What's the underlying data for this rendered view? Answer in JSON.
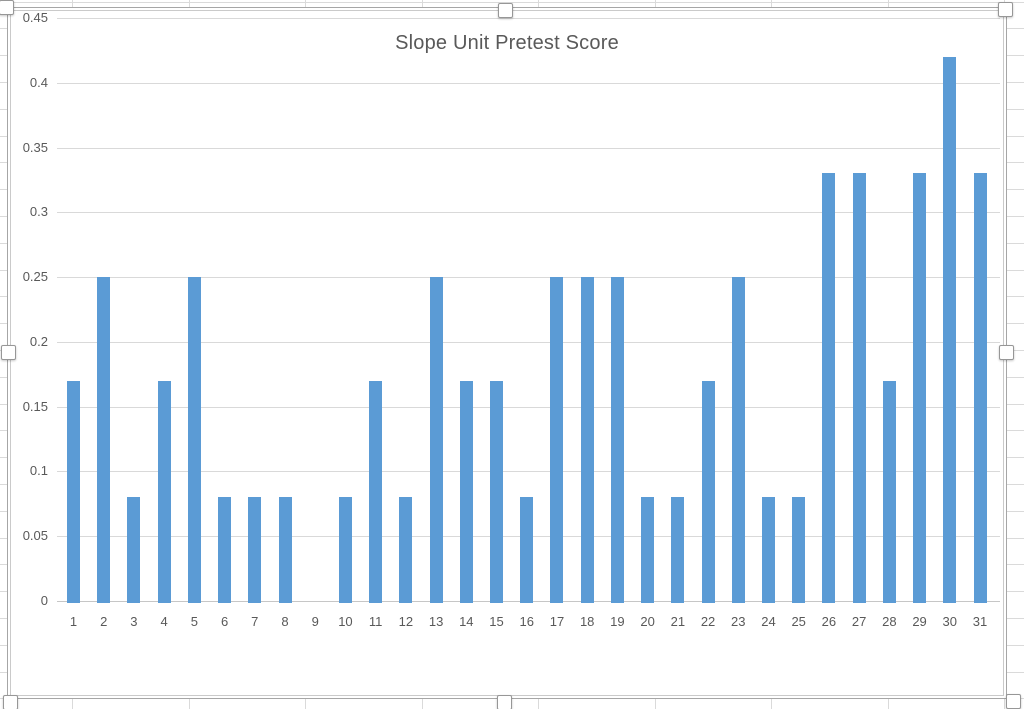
{
  "chart_data": {
    "type": "bar",
    "title": "Slope Unit Pretest Score",
    "categories": [
      "1",
      "2",
      "3",
      "4",
      "5",
      "6",
      "7",
      "8",
      "9",
      "10",
      "11",
      "12",
      "13",
      "14",
      "15",
      "16",
      "17",
      "18",
      "19",
      "20",
      "21",
      "22",
      "23",
      "24",
      "25",
      "26",
      "27",
      "28",
      "29",
      "30",
      "31"
    ],
    "values": [
      0.17,
      0.25,
      0.08,
      0.17,
      0.25,
      0.08,
      0.08,
      0.08,
      0,
      0.08,
      0.17,
      0.08,
      0.25,
      0.17,
      0.17,
      0.08,
      0.25,
      0.25,
      0.25,
      0.08,
      0.08,
      0.17,
      0.25,
      0.08,
      0.08,
      0.33,
      0.33,
      0.17,
      0.33,
      0.42,
      0.33
    ],
    "xlabel": "",
    "ylabel": "",
    "ylim": [
      0,
      0.45
    ],
    "yticks": [
      0,
      0.05,
      0.1,
      0.15,
      0.2,
      0.25,
      0.3,
      0.35,
      0.4,
      0.45
    ],
    "ytick_labels": [
      "0",
      "0.05",
      "0.1",
      "0.15",
      "0.2",
      "0.25",
      "0.3",
      "0.35",
      "0.4",
      "0.45"
    ],
    "grid": true,
    "legend": "none",
    "bar_color": "#5B9BD5"
  },
  "chart_state": {
    "selected": true,
    "handle_positions": [
      "top-left",
      "top-center",
      "top-right",
      "middle-left",
      "middle-right",
      "bottom-left",
      "bottom-center",
      "bottom-right"
    ]
  },
  "colors": {
    "bar": "#5B9BD5",
    "plot_gridline": "#D9D9D9",
    "axis_line": "#C6C6C6",
    "tick_text": "#595959",
    "title_text": "#595959",
    "sheet_gridline": "#DADADA",
    "frame_border": "#A6A6A6",
    "handle_border": "#979797"
  }
}
